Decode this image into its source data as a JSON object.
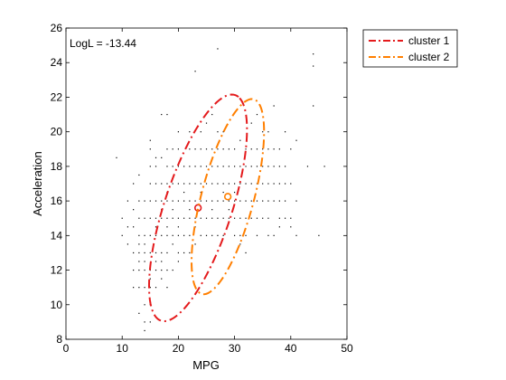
{
  "chart_data": {
    "type": "scatter",
    "xlabel": "MPG",
    "ylabel": "Acceleration",
    "xlim": [
      0,
      50
    ],
    "ylim": [
      8,
      26
    ],
    "xticks": [
      0,
      10,
      20,
      30,
      40,
      50
    ],
    "yticks": [
      8,
      10,
      12,
      14,
      16,
      18,
      20,
      22,
      24,
      26
    ],
    "grid": false,
    "legend_position": "outside-top-right",
    "annotation": "LogL = -13.44",
    "points": [
      [
        9,
        18.5
      ],
      [
        10,
        15
      ],
      [
        10,
        14
      ],
      [
        11,
        13.5
      ],
      [
        11,
        14.5
      ],
      [
        11,
        16
      ],
      [
        12,
        11
      ],
      [
        12,
        12
      ],
      [
        12,
        13
      ],
      [
        12,
        14.5
      ],
      [
        12,
        15.5
      ],
      [
        12,
        17
      ],
      [
        13,
        9.5
      ],
      [
        13,
        11
      ],
      [
        13,
        12
      ],
      [
        13,
        13
      ],
      [
        13,
        14
      ],
      [
        13,
        15
      ],
      [
        13,
        16
      ],
      [
        13,
        17.5
      ],
      [
        13,
        13.5
      ],
      [
        13,
        12.5
      ],
      [
        14,
        8.5
      ],
      [
        14,
        9
      ],
      [
        14,
        10
      ],
      [
        14,
        11
      ],
      [
        14,
        12
      ],
      [
        14,
        13
      ],
      [
        14,
        14
      ],
      [
        14,
        15
      ],
      [
        14,
        16
      ],
      [
        14,
        12.5
      ],
      [
        14,
        13.5
      ],
      [
        15,
        10
      ],
      [
        15,
        11
      ],
      [
        15,
        12
      ],
      [
        15,
        13
      ],
      [
        15,
        14
      ],
      [
        15,
        15
      ],
      [
        15,
        16
      ],
      [
        15,
        17
      ],
      [
        15,
        18
      ],
      [
        15,
        19
      ],
      [
        15,
        19.5
      ],
      [
        15,
        11.5
      ],
      [
        15,
        9
      ],
      [
        16,
        11
      ],
      [
        16,
        12
      ],
      [
        16,
        13
      ],
      [
        16,
        14
      ],
      [
        16,
        15
      ],
      [
        16,
        16
      ],
      [
        16,
        17
      ],
      [
        16,
        18
      ],
      [
        16,
        12.5
      ],
      [
        16,
        14.5
      ],
      [
        16,
        18.5
      ],
      [
        17,
        11.5
      ],
      [
        17,
        12
      ],
      [
        17,
        13
      ],
      [
        17,
        14
      ],
      [
        17,
        15
      ],
      [
        17,
        16
      ],
      [
        17,
        17
      ],
      [
        17,
        18.5
      ],
      [
        17,
        21
      ],
      [
        17,
        15.5
      ],
      [
        17,
        12.5
      ],
      [
        18,
        11
      ],
      [
        18,
        12
      ],
      [
        18,
        13
      ],
      [
        18,
        14
      ],
      [
        18,
        15
      ],
      [
        18,
        16
      ],
      [
        18,
        17
      ],
      [
        18,
        18
      ],
      [
        18,
        19
      ],
      [
        18,
        21
      ],
      [
        18,
        14.5
      ],
      [
        18,
        16.5
      ],
      [
        19,
        12
      ],
      [
        19,
        13.5
      ],
      [
        19,
        14
      ],
      [
        19,
        15
      ],
      [
        19,
        16
      ],
      [
        19,
        17
      ],
      [
        19,
        18
      ],
      [
        19,
        19
      ],
      [
        19,
        15.5
      ],
      [
        20,
        12.5
      ],
      [
        20,
        13
      ],
      [
        20,
        14
      ],
      [
        20,
        15
      ],
      [
        20,
        16
      ],
      [
        20,
        17
      ],
      [
        20,
        18
      ],
      [
        20,
        19
      ],
      [
        20,
        20
      ],
      [
        20,
        14.5
      ],
      [
        21,
        13
      ],
      [
        21,
        14
      ],
      [
        21,
        15
      ],
      [
        21,
        16
      ],
      [
        21,
        17
      ],
      [
        21,
        18
      ],
      [
        21,
        16.5
      ],
      [
        22,
        13
      ],
      [
        22,
        14
      ],
      [
        22,
        15
      ],
      [
        22,
        16
      ],
      [
        22,
        17
      ],
      [
        22,
        18
      ],
      [
        22,
        19
      ],
      [
        22,
        20
      ],
      [
        22,
        15.5
      ],
      [
        23,
        13.5
      ],
      [
        23,
        14.5
      ],
      [
        23,
        15
      ],
      [
        23,
        16
      ],
      [
        23,
        17
      ],
      [
        23,
        18
      ],
      [
        23,
        19
      ],
      [
        23,
        23.5
      ],
      [
        24,
        14
      ],
      [
        24,
        15
      ],
      [
        24,
        16
      ],
      [
        24,
        17
      ],
      [
        24,
        18
      ],
      [
        24,
        19
      ],
      [
        24,
        20
      ],
      [
        24,
        16.5
      ],
      [
        25,
        14
      ],
      [
        25,
        15
      ],
      [
        25,
        16
      ],
      [
        25,
        17
      ],
      [
        25,
        18
      ],
      [
        25,
        19
      ],
      [
        25,
        20.5
      ],
      [
        26,
        14
      ],
      [
        26,
        15
      ],
      [
        26,
        16
      ],
      [
        26,
        17
      ],
      [
        26,
        18
      ],
      [
        26,
        19
      ],
      [
        26,
        21
      ],
      [
        26,
        15.5
      ],
      [
        27,
        14
      ],
      [
        27,
        15
      ],
      [
        27,
        16
      ],
      [
        27,
        17
      ],
      [
        27,
        18
      ],
      [
        27,
        19
      ],
      [
        27,
        20
      ],
      [
        27,
        24.8
      ],
      [
        28,
        14
      ],
      [
        28,
        15
      ],
      [
        28,
        16
      ],
      [
        28,
        17
      ],
      [
        28,
        18
      ],
      [
        28,
        19
      ],
      [
        28,
        20
      ],
      [
        28,
        16.5
      ],
      [
        29,
        15
      ],
      [
        29,
        16
      ],
      [
        29,
        17
      ],
      [
        29,
        18
      ],
      [
        29,
        19
      ],
      [
        29,
        15.5
      ],
      [
        30,
        14
      ],
      [
        30,
        15
      ],
      [
        30,
        16
      ],
      [
        30,
        17
      ],
      [
        30,
        18
      ],
      [
        30,
        19
      ],
      [
        30,
        16.5
      ],
      [
        31,
        14
      ],
      [
        31,
        15
      ],
      [
        31,
        16
      ],
      [
        31,
        17
      ],
      [
        31,
        18
      ],
      [
        31,
        19.5
      ],
      [
        31,
        13.5
      ],
      [
        32,
        13
      ],
      [
        32,
        14
      ],
      [
        32,
        15
      ],
      [
        32,
        16
      ],
      [
        32,
        17
      ],
      [
        32,
        18
      ],
      [
        32,
        19
      ],
      [
        33,
        15
      ],
      [
        33,
        16
      ],
      [
        33,
        17
      ],
      [
        33,
        18
      ],
      [
        33,
        19
      ],
      [
        33,
        20.5
      ],
      [
        34,
        14
      ],
      [
        34,
        15
      ],
      [
        34,
        16
      ],
      [
        34,
        17
      ],
      [
        34,
        18
      ],
      [
        34,
        19
      ],
      [
        34,
        21
      ],
      [
        35,
        16
      ],
      [
        35,
        17
      ],
      [
        35,
        18
      ],
      [
        35,
        19
      ],
      [
        35,
        20
      ],
      [
        35,
        15
      ],
      [
        36,
        14
      ],
      [
        36,
        15
      ],
      [
        36,
        16
      ],
      [
        36,
        17
      ],
      [
        36,
        18
      ],
      [
        36,
        19
      ],
      [
        36,
        20
      ],
      [
        37,
        14
      ],
      [
        37,
        16
      ],
      [
        37,
        17
      ],
      [
        37,
        18
      ],
      [
        37,
        19
      ],
      [
        37,
        21.5
      ],
      [
        38,
        15
      ],
      [
        38,
        16
      ],
      [
        38,
        17
      ],
      [
        38,
        18
      ],
      [
        38,
        19
      ],
      [
        38,
        14.5
      ],
      [
        39,
        15
      ],
      [
        39,
        16
      ],
      [
        39,
        17
      ],
      [
        39,
        18
      ],
      [
        39,
        20
      ],
      [
        40,
        15
      ],
      [
        40,
        17
      ],
      [
        40,
        19
      ],
      [
        40,
        14.5
      ],
      [
        41,
        16
      ],
      [
        41,
        19.5
      ],
      [
        41,
        14
      ],
      [
        43,
        18
      ],
      [
        44,
        21.5
      ],
      [
        44,
        23.8
      ],
      [
        44,
        24.5
      ],
      [
        45,
        14
      ],
      [
        46,
        18
      ]
    ],
    "series": [
      {
        "name": "cluster 1",
        "color": "#e41a1c",
        "style": "dash-dot",
        "center": [
          23.5,
          15.6
        ],
        "ellipse": {
          "semi_major": [
            7.4,
            6.35
          ],
          "semi_minor": [
            4.6,
            -1.63
          ]
        }
      },
      {
        "name": "cluster 2",
        "color": "#ff7f00",
        "style": "dash-dot",
        "center": [
          28.8,
          16.25
        ],
        "ellipse": {
          "semi_major": [
            5.6,
            5.35
          ],
          "semi_minor": [
            3.2,
            -1.8
          ]
        }
      }
    ]
  },
  "colors": {
    "axis": "#000000",
    "points": "#000000",
    "cluster1": "#e41a1c",
    "cluster2": "#ff7f00"
  }
}
